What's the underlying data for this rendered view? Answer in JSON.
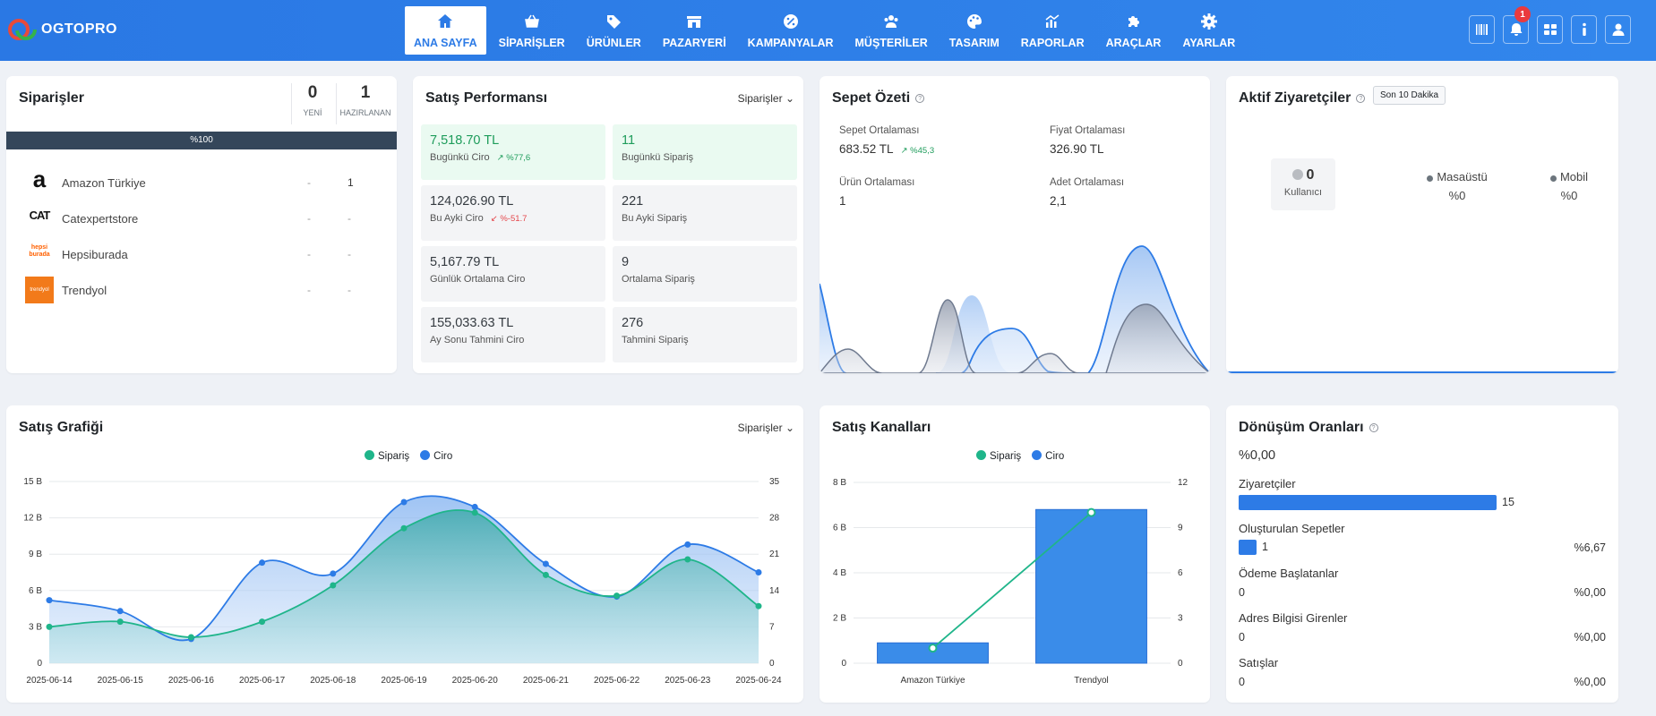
{
  "brand": {
    "name": "OGTOPRO"
  },
  "nav": [
    {
      "label": "ANA SAYFA",
      "icon": "home-icon",
      "active": true
    },
    {
      "label": "SİPARİŞLER",
      "icon": "basket-icon"
    },
    {
      "label": "ÜRÜNLER",
      "icon": "tag-icon"
    },
    {
      "label": "PAZARYERİ",
      "icon": "store-icon"
    },
    {
      "label": "KAMPANYALAR",
      "icon": "percent-icon"
    },
    {
      "label": "MÜŞTERİLER",
      "icon": "users-icon"
    },
    {
      "label": "TASARIM",
      "icon": "palette-icon"
    },
    {
      "label": "RAPORLAR",
      "icon": "chart-icon"
    },
    {
      "label": "ARAÇLAR",
      "icon": "puzzle-icon"
    },
    {
      "label": "AYARLAR",
      "icon": "gear-icon"
    }
  ],
  "toolbar": {
    "notification_count": "1",
    "icons": [
      "barcode-icon",
      "bell-icon",
      "grid-icon",
      "info-icon",
      "user-icon"
    ]
  },
  "orders": {
    "title": "Siparişler",
    "new_count": "0",
    "new_label": "YENİ",
    "prep_count": "1",
    "prep_label": "HAZIRLANAN",
    "progress_label": "%100",
    "rows": [
      {
        "name": "Amazon Türkiye",
        "new": "-",
        "prep": "1",
        "logo_text": "a"
      },
      {
        "name": "Catexpertstore",
        "new": "-",
        "prep": "-",
        "logo_text": "CAT"
      },
      {
        "name": "Hepsiburada",
        "new": "-",
        "prep": "-",
        "logo_text": "hepsi burada"
      },
      {
        "name": "Trendyol",
        "new": "-",
        "prep": "-",
        "logo_text": "trendyol"
      }
    ]
  },
  "sales_perf": {
    "title": "Satış Performansı",
    "dropdown": "Siparişler",
    "tiles": [
      {
        "value": "7,518.70 TL",
        "label": "Bugünkü Ciro",
        "change": "%77,6",
        "dir": "up",
        "green": true
      },
      {
        "value": "11",
        "label": "Bugünkü Sipariş",
        "green": true
      },
      {
        "value": "124,026.90 TL",
        "label": "Bu Ayki Ciro",
        "change": "%-51.7",
        "dir": "down"
      },
      {
        "value": "221",
        "label": "Bu Ayki Sipariş"
      },
      {
        "value": "5,167.79 TL",
        "label": "Günlük Ortalama Ciro"
      },
      {
        "value": "9",
        "label": "Ortalama Sipariş"
      },
      {
        "value": "155,033.63 TL",
        "label": "Ay Sonu Tahmini Ciro"
      },
      {
        "value": "276",
        "label": "Tahmini Sipariş"
      }
    ]
  },
  "cart": {
    "title": "Sepet Özeti",
    "items": [
      {
        "label": "Sepet Ortalaması",
        "value": "683.52 TL",
        "change": "%45,3"
      },
      {
        "label": "Fiyat Ortalaması",
        "value": "326.90 TL"
      },
      {
        "label": "Ürün Ortalaması",
        "value": "1"
      },
      {
        "label": "Adet Ortalaması",
        "value": "2,1"
      }
    ]
  },
  "visitors": {
    "title": "Aktif Ziyaretçiler",
    "badge": "Son 10 Dakika",
    "count": "0",
    "count_label": "Kullanıcı",
    "desktop_label": "Masaüstü",
    "desktop_value": "%0",
    "mobile_label": "Mobil",
    "mobile_value": "%0"
  },
  "sales_chart": {
    "title": "Satış Grafiği",
    "dropdown": "Siparişler"
  },
  "channels": {
    "title": "Satış Kanalları"
  },
  "conversion": {
    "title": "Dönüşüm Oranları",
    "total": "%0,00",
    "rows": [
      {
        "label": "Ziyaretçiler",
        "value": "15",
        "pct": "",
        "fill": 1
      },
      {
        "label": "Oluşturulan Sepetler",
        "value": "1",
        "pct": "%6,67",
        "fill": 0.0667
      },
      {
        "label": "Ödeme Başlatanlar",
        "value": "0",
        "pct": "%0,00",
        "fill": 0
      },
      {
        "label": "Adres Bilgisi Girenler",
        "value": "0",
        "pct": "%0,00",
        "fill": 0
      },
      {
        "label": "Satışlar",
        "value": "0",
        "pct": "%0,00",
        "fill": 0
      }
    ]
  },
  "chart_data": [
    {
      "type": "area",
      "legend": [
        "Sipariş",
        "Ciro"
      ],
      "x": [
        "2025-06-14",
        "2025-06-15",
        "2025-06-16",
        "2025-06-17",
        "2025-06-18",
        "2025-06-19",
        "2025-06-20",
        "2025-06-21",
        "2025-06-22",
        "2025-06-23",
        "2025-06-24"
      ],
      "series": [
        {
          "name": "Sipariş",
          "axis": "right",
          "color": "#1fb58a",
          "values": [
            7,
            8,
            5,
            8,
            15,
            26,
            29,
            17,
            13,
            20,
            11
          ]
        },
        {
          "name": "Ciro",
          "axis": "left",
          "color": "#2d7be6",
          "values": [
            5.2,
            4.3,
            2.0,
            8.3,
            7.4,
            13.3,
            12.9,
            8.2,
            5.5,
            9.8,
            7.5
          ]
        }
      ],
      "left_ticks": [
        "0",
        "3 B",
        "6 B",
        "9 B",
        "12 B",
        "15 B"
      ],
      "right_ticks": [
        "0",
        "7",
        "14",
        "21",
        "28",
        "35"
      ],
      "ylim_left": [
        0,
        15
      ],
      "ylim_right": [
        0,
        35
      ]
    },
    {
      "type": "bar",
      "legend": [
        "Sipariş",
        "Ciro"
      ],
      "categories": [
        "Amazon Türkiye",
        "Trendyol"
      ],
      "series": [
        {
          "name": "Ciro",
          "type": "bar",
          "axis": "left",
          "color": "#3a8ce9",
          "values": [
            0.9,
            6.8
          ]
        },
        {
          "name": "Sipariş",
          "type": "line",
          "axis": "right",
          "color": "#1fb58a",
          "values": [
            1,
            10
          ]
        }
      ],
      "left_ticks": [
        "0",
        "2 B",
        "4 B",
        "6 B",
        "8 B"
      ],
      "right_ticks": [
        "0",
        "3",
        "6",
        "9",
        "12"
      ],
      "ylim_left": [
        0,
        8
      ],
      "ylim_right": [
        0,
        12
      ]
    }
  ]
}
